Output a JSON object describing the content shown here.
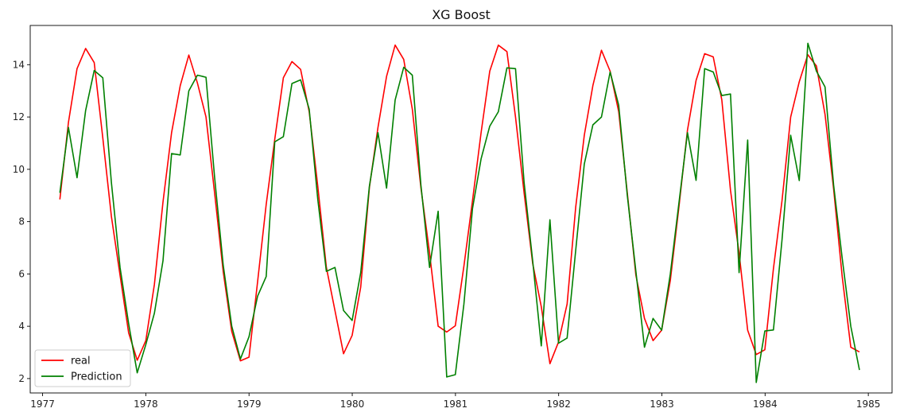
{
  "chart_data": {
    "type": "line",
    "title": "XG Boost",
    "xlabel": "",
    "ylabel": "",
    "xlim": [
      1976.88,
      1985.23
    ],
    "ylim": [
      1.45,
      15.5
    ],
    "x_ticks": [
      1977,
      1978,
      1979,
      1980,
      1981,
      1982,
      1983,
      1984,
      1985
    ],
    "y_ticks": [
      2,
      4,
      6,
      8,
      10,
      12,
      14
    ],
    "grid": false,
    "legend_position": "bottom-left",
    "series": [
      {
        "name": "real",
        "color": "#ff0000",
        "x_start": 1977.167,
        "x_step": 0.0833,
        "values": [
          8.85,
          11.8,
          13.85,
          14.62,
          14.08,
          11.2,
          8.2,
          5.95,
          3.75,
          2.7,
          3.45,
          5.6,
          8.75,
          11.4,
          13.2,
          14.37,
          13.3,
          12.0,
          9.1,
          6.1,
          3.8,
          2.68,
          2.82,
          5.7,
          8.65,
          11.15,
          13.5,
          14.12,
          13.82,
          12.2,
          9.35,
          6.25,
          4.6,
          2.95,
          3.65,
          5.5,
          9.3,
          11.6,
          13.55,
          14.75,
          14.2,
          12.3,
          9.3,
          6.8,
          4.0,
          3.78,
          4.02,
          6.3,
          8.8,
          11.4,
          13.75,
          14.75,
          14.5,
          12.0,
          9.1,
          6.4,
          4.75,
          2.57,
          3.4,
          4.85,
          8.55,
          11.3,
          13.2,
          14.55,
          13.75,
          12.2,
          9.1,
          5.95,
          4.3,
          3.45,
          3.85,
          5.75,
          8.55,
          11.5,
          13.4,
          14.42,
          14.3,
          12.65,
          9.2,
          6.8,
          3.85,
          2.92,
          3.1,
          6.2,
          8.8,
          12.0,
          13.35,
          14.38,
          13.95,
          12.1,
          9.25,
          5.9,
          3.2,
          3.02
        ]
      },
      {
        "name": "Prediction",
        "color": "#008000",
        "x_start": 1977.167,
        "x_step": 0.0833,
        "values": [
          9.1,
          11.6,
          9.68,
          12.25,
          13.78,
          13.5,
          9.5,
          6.25,
          4.1,
          2.22,
          3.3,
          4.5,
          6.5,
          10.6,
          10.55,
          13.0,
          13.6,
          13.52,
          9.7,
          6.35,
          4.0,
          2.75,
          3.6,
          5.15,
          5.9,
          11.05,
          11.25,
          13.28,
          13.42,
          12.3,
          8.85,
          6.1,
          6.25,
          4.6,
          4.22,
          6.05,
          9.35,
          11.4,
          9.28,
          12.65,
          13.9,
          13.6,
          9.4,
          6.25,
          8.4,
          2.06,
          2.15,
          4.85,
          8.5,
          10.4,
          11.65,
          12.2,
          13.88,
          13.85,
          9.5,
          6.5,
          3.25,
          8.07,
          3.35,
          3.55,
          6.9,
          10.2,
          11.7,
          12.0,
          13.72,
          12.45,
          9.0,
          6.1,
          3.2,
          4.3,
          3.85,
          6.0,
          8.7,
          11.4,
          9.58,
          13.85,
          13.72,
          12.82,
          12.88,
          6.05,
          11.12,
          1.85,
          3.82,
          3.86,
          7.3,
          11.3,
          9.57,
          14.82,
          13.75,
          13.15,
          9.4,
          6.6,
          4.0,
          2.33
        ]
      }
    ]
  }
}
